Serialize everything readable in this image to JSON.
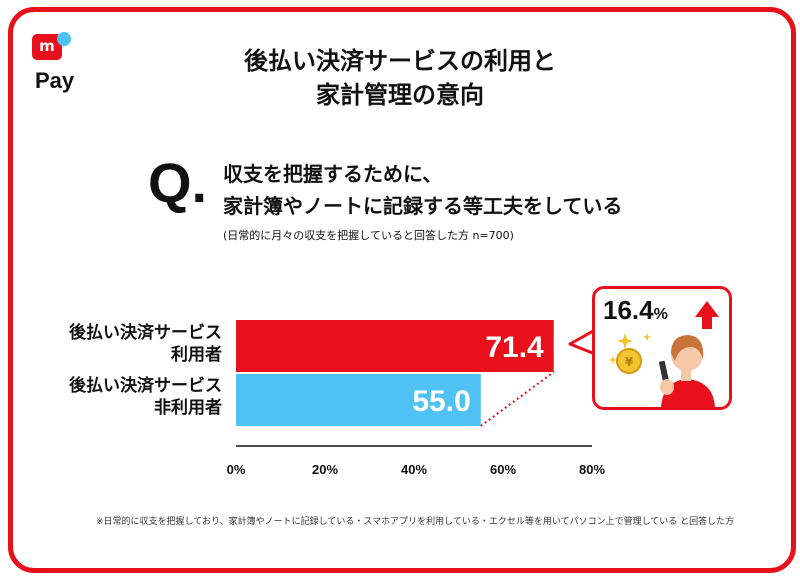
{
  "brand": {
    "logo_mark": "m",
    "logo_text": "Pay"
  },
  "title_lines": [
    "後払い決済サービスの利用と",
    "家計管理の意向"
  ],
  "question": {
    "mark": "Q.",
    "lines": [
      "収支を把握するために、",
      "家計簿やノートに記録する等工夫をしている"
    ],
    "sub": "(日常的に月々の収支を把握していると回答した方 n=700)"
  },
  "callout": {
    "value": "16.4",
    "unit": "%",
    "icon": "up-arrow-icon"
  },
  "footnote": "※日常的に収支を把握しており、家計簿やノートに記録している・スマホアプリを利用している・エクセル等を用いてパソコン上で管理している と回答した方",
  "colors": {
    "accent": "#e8101a",
    "bar_users": "#e8101a",
    "bar_nonusers": "#4fc1f2"
  },
  "chart_data": {
    "type": "bar",
    "orientation": "horizontal",
    "categories": [
      [
        "後払い決済サービス",
        "利用者"
      ],
      [
        "後払い決済サービス",
        "非利用者"
      ]
    ],
    "values": [
      71.4,
      55.0
    ],
    "value_labels": [
      "71.4",
      "55.0"
    ],
    "xlim": [
      0,
      80
    ],
    "xticks": [
      "0%",
      "20%",
      "40%",
      "60%",
      "80%"
    ],
    "grid": false
  }
}
